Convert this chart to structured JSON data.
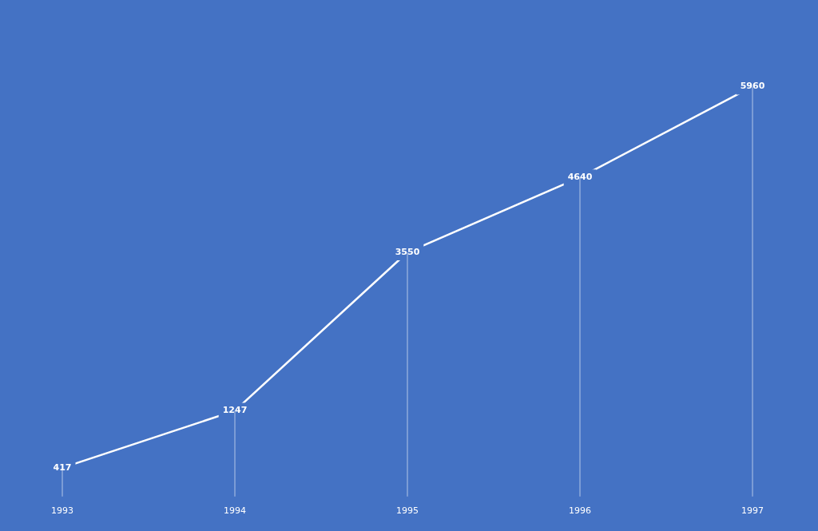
{
  "chart_data": {
    "type": "line",
    "categories": [
      "1993",
      "1994",
      "1995",
      "1996",
      "1997"
    ],
    "series": [
      {
        "color": "#ffffff",
        "values": [
          417,
          1247,
          3550,
          4640,
          5960
        ]
      }
    ],
    "data_labels": true,
    "grid": "x",
    "legend": false,
    "line_style": "solid",
    "tick_labels": "x"
  }
}
